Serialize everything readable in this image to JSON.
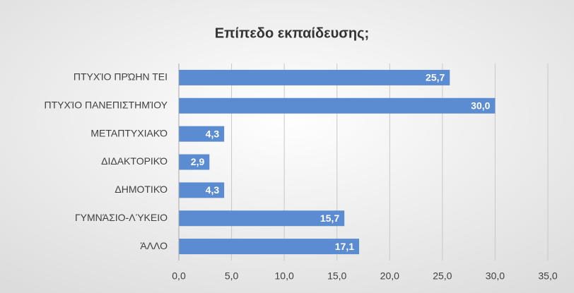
{
  "chart_data": {
    "type": "barh",
    "title": "Επίπεδο εκπαίδευσης;",
    "categories": [
      "ΠΤΥΧΊΟ ΠΡΏΗΝ ΤΕΙ",
      "ΠΤΥΧΊΟ ΠΑΝΕΠΙΣΤΗΜΊΟΥ",
      "ΜΕΤΑΠΤΥΧΙΑΚΌ",
      "ΔΙΔΑΚΤΟΡΙΚΌ",
      "ΔΗΜΟΤΙΚΌ",
      "ΓΥΜΝΆΣΙΟ-ΛΎΚΕΙΟ",
      "ΆΛΛΟ"
    ],
    "values": [
      25.7,
      30.0,
      4.3,
      2.9,
      4.3,
      15.7,
      17.1
    ],
    "value_labels": [
      "25,7",
      "30,0",
      "4,3",
      "2,9",
      "4,3",
      "15,7",
      "17,1"
    ],
    "color": "#5b8cd1",
    "xlim": [
      0,
      35
    ],
    "xticks": [
      {
        "value": 0,
        "label": "0,0"
      },
      {
        "value": 5,
        "label": "5,0"
      },
      {
        "value": 10,
        "label": "10,0"
      },
      {
        "value": 15,
        "label": "15,0"
      },
      {
        "value": 20,
        "label": "20,0"
      },
      {
        "value": 25,
        "label": "25,0"
      },
      {
        "value": 30,
        "label": "30,0"
      },
      {
        "value": 35,
        "label": "35,0"
      }
    ],
    "grid": true
  }
}
